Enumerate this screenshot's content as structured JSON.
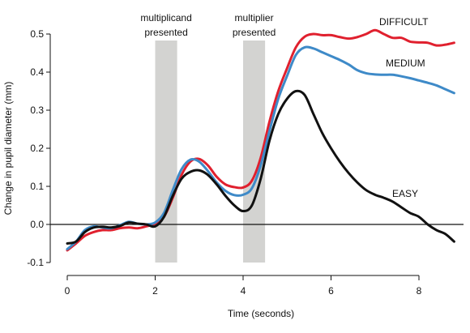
{
  "chart_data": {
    "type": "line",
    "title": "",
    "xlabel": "Time (seconds)",
    "ylabel": "Change in pupil diameter (mm)",
    "xlim": [
      -0.1,
      8.9
    ],
    "ylim": [
      -0.1,
      0.52
    ],
    "xticks": [
      0,
      2,
      4,
      6,
      8
    ],
    "yticks": [
      -0.1,
      0.0,
      0.1,
      0.2,
      0.3,
      0.4,
      0.5
    ],
    "xtick_labels": [
      "0",
      "2",
      "4",
      "6",
      "8"
    ],
    "ytick_labels": [
      "-0.1",
      "0.0",
      "0.1",
      "0.2",
      "0.3",
      "0.4",
      "0.5"
    ],
    "zero_line": true,
    "grid": false,
    "annotations": [
      {
        "text_lines": [
          "multiplicand",
          "presented"
        ],
        "x_range": [
          2.0,
          2.5
        ]
      },
      {
        "text_lines": [
          "multiplier",
          "presented"
        ],
        "x_range": [
          4.0,
          4.5
        ]
      }
    ],
    "series": [
      {
        "name": "DIFFICULT",
        "color": "#e0202e",
        "x": [
          0.0,
          0.2,
          0.4,
          0.6,
          0.8,
          1.0,
          1.2,
          1.4,
          1.6,
          1.8,
          2.0,
          2.2,
          2.4,
          2.6,
          2.8,
          3.0,
          3.2,
          3.4,
          3.6,
          3.8,
          4.0,
          4.2,
          4.4,
          4.6,
          4.8,
          5.0,
          5.2,
          5.4,
          5.6,
          5.8,
          6.0,
          6.2,
          6.4,
          6.6,
          6.8,
          7.0,
          7.2,
          7.4,
          7.6,
          7.8,
          8.0,
          8.2,
          8.4,
          8.6,
          8.8
        ],
        "y": [
          -0.068,
          -0.05,
          -0.03,
          -0.02,
          -0.015,
          -0.015,
          -0.01,
          -0.008,
          -0.01,
          -0.005,
          0.002,
          0.02,
          0.07,
          0.13,
          0.165,
          0.172,
          0.155,
          0.125,
          0.105,
          0.098,
          0.097,
          0.115,
          0.175,
          0.27,
          0.35,
          0.41,
          0.465,
          0.493,
          0.5,
          0.497,
          0.497,
          0.492,
          0.488,
          0.492,
          0.5,
          0.51,
          0.5,
          0.49,
          0.49,
          0.48,
          0.478,
          0.477,
          0.47,
          0.472,
          0.477
        ]
      },
      {
        "name": "MEDIUM",
        "color": "#3e8ac8",
        "x": [
          0.0,
          0.2,
          0.4,
          0.6,
          0.8,
          1.0,
          1.2,
          1.4,
          1.6,
          1.8,
          2.0,
          2.2,
          2.4,
          2.6,
          2.8,
          3.0,
          3.2,
          3.4,
          3.6,
          3.8,
          4.0,
          4.2,
          4.4,
          4.6,
          4.8,
          5.0,
          5.2,
          5.4,
          5.6,
          5.8,
          6.0,
          6.2,
          6.4,
          6.6,
          6.8,
          7.0,
          7.2,
          7.4,
          7.6,
          7.8,
          8.0,
          8.2,
          8.4,
          8.6,
          8.8
        ],
        "y": [
          -0.065,
          -0.045,
          -0.015,
          -0.005,
          -0.008,
          -0.01,
          -0.002,
          0.007,
          0.002,
          0.0,
          0.005,
          0.03,
          0.09,
          0.145,
          0.17,
          0.165,
          0.14,
          0.11,
          0.088,
          0.077,
          0.078,
          0.095,
          0.155,
          0.245,
          0.33,
          0.39,
          0.445,
          0.465,
          0.462,
          0.452,
          0.442,
          0.432,
          0.42,
          0.405,
          0.397,
          0.394,
          0.393,
          0.393,
          0.389,
          0.384,
          0.378,
          0.372,
          0.365,
          0.355,
          0.345
        ]
      },
      {
        "name": "EASY",
        "color": "#111111",
        "x": [
          0.0,
          0.2,
          0.4,
          0.6,
          0.8,
          1.0,
          1.2,
          1.4,
          1.6,
          1.8,
          2.0,
          2.2,
          2.4,
          2.6,
          2.8,
          3.0,
          3.2,
          3.4,
          3.6,
          3.8,
          4.0,
          4.2,
          4.4,
          4.6,
          4.8,
          5.0,
          5.2,
          5.4,
          5.6,
          5.8,
          6.0,
          6.2,
          6.4,
          6.6,
          6.8,
          7.0,
          7.2,
          7.4,
          7.6,
          7.8,
          8.0,
          8.2,
          8.4,
          8.6,
          8.8
        ],
        "y": [
          -0.05,
          -0.045,
          -0.02,
          -0.008,
          -0.006,
          -0.008,
          -0.004,
          0.005,
          0.002,
          0.0,
          -0.005,
          0.02,
          0.075,
          0.12,
          0.138,
          0.142,
          0.13,
          0.105,
          0.075,
          0.05,
          0.035,
          0.05,
          0.12,
          0.22,
          0.29,
          0.33,
          0.35,
          0.34,
          0.29,
          0.24,
          0.2,
          0.165,
          0.135,
          0.11,
          0.09,
          0.078,
          0.07,
          0.06,
          0.045,
          0.03,
          0.02,
          0.0,
          -0.015,
          -0.025,
          -0.045
        ]
      }
    ]
  }
}
